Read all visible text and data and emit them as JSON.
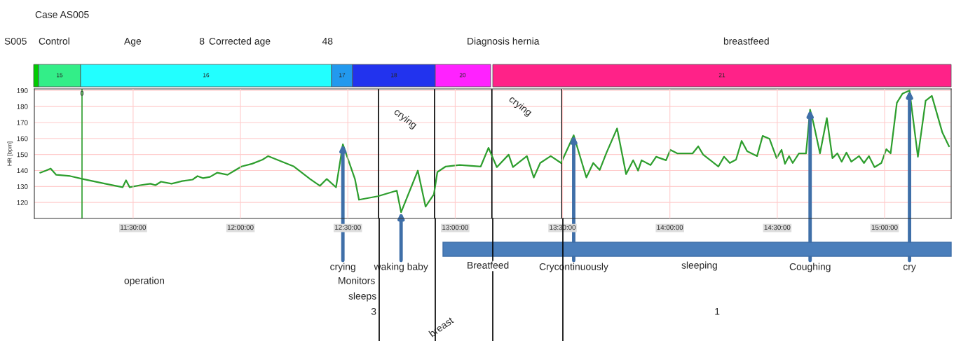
{
  "chart_data": {
    "type": "line",
    "ylabel": "HR [bpm]",
    "x": [
      11.067,
      11.093,
      11.116,
      11.142,
      11.207,
      11.265,
      11.37,
      11.451,
      11.467,
      11.484,
      11.533,
      11.581,
      11.604,
      11.63,
      11.679,
      11.728,
      11.777,
      11.8,
      11.826,
      11.858,
      11.891,
      11.94,
      11.972,
      12.005,
      12.054,
      12.103,
      12.129,
      12.184,
      12.249,
      12.324,
      12.37,
      12.402,
      12.445,
      12.477,
      12.533,
      12.552,
      12.64,
      12.728,
      12.748,
      12.826,
      12.862,
      12.901,
      12.917,
      12.956,
      13.021,
      13.119,
      13.155,
      13.194,
      13.249,
      13.269,
      13.334,
      13.366,
      13.396,
      13.445,
      13.493,
      13.552,
      13.611,
      13.643,
      13.673,
      13.705,
      13.754,
      13.796,
      13.829,
      13.852,
      13.868,
      13.91,
      13.936,
      13.982,
      14.002,
      14.034,
      14.106,
      14.132,
      14.155,
      14.226,
      14.252,
      14.279,
      14.308,
      14.334,
      14.36,
      14.406,
      14.432,
      14.464,
      14.497,
      14.52,
      14.536,
      14.555,
      14.572,
      14.601,
      14.634,
      14.653,
      14.669,
      14.699,
      14.731,
      14.757,
      14.78,
      14.8,
      14.822,
      14.845,
      14.881,
      14.904,
      14.927,
      14.953,
      14.985,
      15.008,
      15.028,
      15.057,
      15.083,
      15.116,
      15.155,
      15.191,
      15.22,
      15.269,
      15.3
    ],
    "series": [
      {
        "color": "#2e9e2e",
        "values": [
          138.6,
          139.9,
          141.2,
          137.3,
          136.5,
          134.7,
          131.7,
          129.5,
          133.9,
          129.5,
          130.8,
          131.7,
          130.8,
          133.0,
          131.7,
          133.4,
          134.3,
          136.5,
          135.2,
          136.0,
          138.6,
          137.3,
          139.9,
          142.5,
          144.2,
          146.8,
          149.0,
          146.0,
          142.5,
          134.7,
          130.4,
          134.7,
          129.5,
          156.4,
          134.7,
          121.7,
          123.9,
          127.4,
          113.9,
          139.9,
          117.4,
          125.2,
          139.0,
          142.5,
          143.4,
          142.5,
          154.2,
          142.1,
          149.9,
          142.1,
          149.0,
          135.6,
          144.7,
          149.0,
          144.7,
          162.0,
          135.6,
          144.7,
          140.3,
          151.2,
          166.3,
          137.7,
          146.4,
          139.9,
          146.4,
          143.4,
          148.6,
          146.4,
          152.9,
          150.7,
          150.7,
          155.1,
          149.9,
          142.5,
          148.6,
          144.7,
          146.8,
          158.5,
          152.0,
          149.0,
          161.6,
          159.8,
          147.7,
          152.9,
          144.2,
          149.0,
          144.7,
          150.7,
          150.7,
          178.0,
          169.4,
          150.7,
          172.8,
          147.7,
          150.7,
          145.5,
          151.2,
          145.5,
          149.0,
          144.7,
          149.0,
          142.1,
          144.7,
          153.3,
          150.7,
          182.3,
          188.0,
          190.0,
          148.6,
          183.6,
          186.7,
          163.7,
          155.1
        ]
      }
    ],
    "xlim": [
      11.04,
      15.31
    ],
    "ylim": [
      110,
      191
    ],
    "xticks": [
      {
        "value": 11.5,
        "label": "11:30:00"
      },
      {
        "value": 12.0,
        "label": "12:00:00"
      },
      {
        "value": 12.5,
        "label": "12:30:00"
      },
      {
        "value": 13.0,
        "label": "13:00:00"
      },
      {
        "value": 13.5,
        "label": "13:30:00"
      },
      {
        "value": 14.0,
        "label": "14:00:00"
      },
      {
        "value": 14.5,
        "label": "14:30:00"
      },
      {
        "value": 15.0,
        "label": "15:00:00"
      }
    ],
    "yticks": [
      120,
      130,
      140,
      150,
      160,
      170,
      180,
      190
    ],
    "grid": true,
    "ref_lines": [
      {
        "axis": "x",
        "value": 11.262,
        "color": "#2e9e2e"
      },
      {
        "axis": "x",
        "value": 12.643,
        "color": "#000000"
      },
      {
        "axis": "x",
        "value": 12.904,
        "color": "#000000"
      },
      {
        "axis": "x",
        "value": 13.171,
        "color": "#000000"
      },
      {
        "axis": "x",
        "value": 13.497,
        "color": "#000000"
      }
    ],
    "annotations": [
      "Case AS005",
      "S005",
      "Control",
      "Age",
      "8",
      "Corrected age",
      "48",
      "Diagnosis hernia",
      "breastfeed",
      "operation",
      "Monitors",
      "sleeps",
      "3",
      "Breatfeed",
      "sleeping",
      "1",
      "crying",
      "crying",
      "breast",
      "0",
      "15",
      "16",
      "17",
      "18",
      "20",
      "21",
      {
        "text": "crying",
        "x": 12.477,
        "y": 156.4
      },
      {
        "text": "waking baby",
        "x": 12.748,
        "y": 113.9
      },
      {
        "text": "Crycontinuously",
        "x": 13.552,
        "y": 162.0
      },
      {
        "text": "Coughing",
        "x": 14.653,
        "y": 178.0
      },
      {
        "text": "cry",
        "x": 15.116,
        "y": 190.0
      }
    ]
  }
}
